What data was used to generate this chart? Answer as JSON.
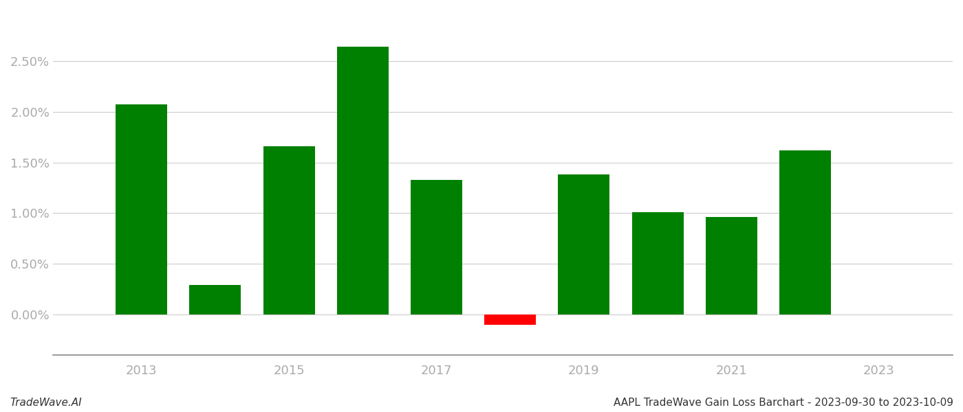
{
  "years": [
    2013,
    2014,
    2015,
    2016,
    2017,
    2018,
    2019,
    2020,
    2021,
    2022
  ],
  "values": [
    0.0207,
    0.0029,
    0.0166,
    0.0264,
    0.0133,
    -0.001,
    0.0138,
    0.0101,
    0.0096,
    0.0162
  ],
  "colors": [
    "#008000",
    "#008000",
    "#008000",
    "#008000",
    "#008000",
    "#ff0000",
    "#008000",
    "#008000",
    "#008000",
    "#008000"
  ],
  "title": "AAPL TradeWave Gain Loss Barchart - 2023-09-30 to 2023-10-09",
  "watermark": "TradeWave.AI",
  "background_color": "#ffffff",
  "grid_color": "#cccccc",
  "tick_label_color": "#aaaaaa",
  "ylim_min": -0.004,
  "ylim_max": 0.03,
  "bar_width": 0.7,
  "xtick_years": [
    2013,
    2015,
    2017,
    2019,
    2021,
    2023
  ],
  "xlim_min": 2011.8,
  "xlim_max": 2024.0,
  "yticks": [
    0.0,
    0.005,
    0.01,
    0.015,
    0.02,
    0.025
  ],
  "figwidth": 14.0,
  "figheight": 6.0,
  "dpi": 100
}
